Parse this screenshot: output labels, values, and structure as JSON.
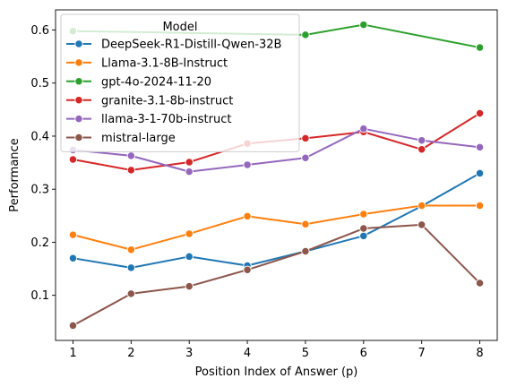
{
  "chart_data": {
    "type": "line",
    "title": "",
    "xlabel": "Position Index of Answer (p)",
    "ylabel": "Performance",
    "x": [
      1,
      2,
      3,
      4,
      5,
      6,
      7,
      8
    ],
    "xlim": [
      0.7,
      8.3
    ],
    "ylim": [
      0.015,
      0.638
    ],
    "yticks": [
      0.1,
      0.2,
      0.3,
      0.4,
      0.5,
      0.6
    ],
    "ytick_labels": [
      "0.1",
      "0.2",
      "0.3",
      "0.4",
      "0.5",
      "0.6"
    ],
    "xticks": [
      1,
      2,
      3,
      4,
      5,
      6,
      7,
      8
    ],
    "xtick_labels": [
      "1",
      "2",
      "3",
      "4",
      "5",
      "6",
      "7",
      "8"
    ],
    "grid": false,
    "legend": {
      "title": "Model",
      "placement": "top-left"
    },
    "series": [
      {
        "name": "DeepSeek-R1-Distill-Qwen-32B",
        "color": "#1f77b4",
        "x": [
          1,
          2,
          3,
          4,
          5,
          6,
          7,
          8
        ],
        "values": [
          0.17,
          0.152,
          0.173,
          0.156,
          0.183,
          0.212,
          0.268,
          0.33
        ]
      },
      {
        "name": "Llama-3.1-8B-Instruct",
        "color": "#ff7f0e",
        "x": [
          1,
          2,
          3,
          4,
          5,
          6,
          7,
          8
        ],
        "values": [
          0.214,
          0.186,
          0.216,
          0.249,
          0.234,
          0.253,
          0.269,
          0.269
        ]
      },
      {
        "name": "gpt-4o-2024-11-20",
        "color": "#2ca02c",
        "x": [
          1,
          5,
          6,
          8
        ],
        "values": [
          0.598,
          0.591,
          0.61,
          0.567
        ]
      },
      {
        "name": "granite-3.1-8b-instruct",
        "color": "#d62728",
        "x": [
          1,
          2,
          3,
          4,
          5,
          6,
          7,
          8
        ],
        "values": [
          0.356,
          0.336,
          0.351,
          0.386,
          0.396,
          0.408,
          0.375,
          0.443
        ]
      },
      {
        "name": "llama-3-1-70b-instruct",
        "color": "#9467bd",
        "x": [
          1,
          2,
          3,
          4,
          5,
          6,
          7,
          8
        ],
        "values": [
          0.374,
          0.363,
          0.333,
          0.346,
          0.359,
          0.414,
          0.392,
          0.379
        ]
      },
      {
        "name": "mistral-large",
        "color": "#8c564b",
        "x": [
          1,
          2,
          3,
          4,
          5,
          6,
          7,
          8
        ],
        "values": [
          0.043,
          0.103,
          0.117,
          0.148,
          0.183,
          0.226,
          0.233,
          0.123
        ]
      }
    ]
  }
}
